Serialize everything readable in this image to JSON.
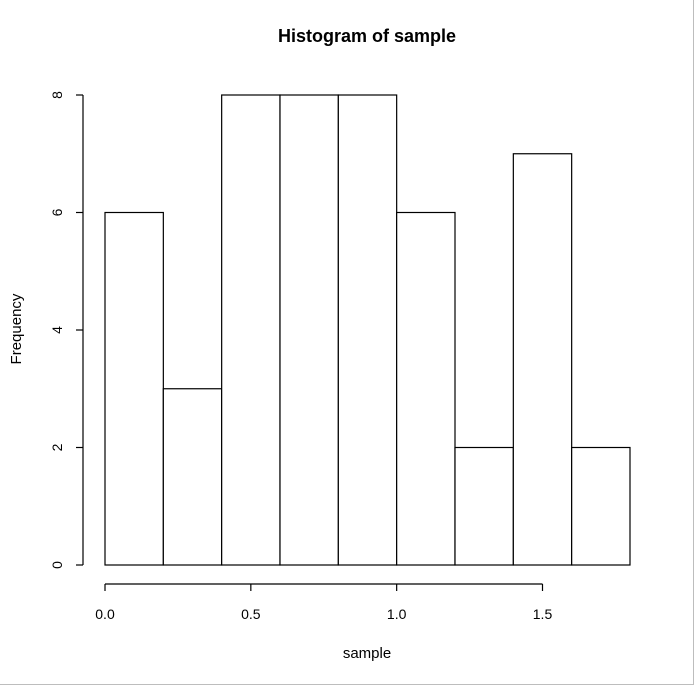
{
  "chart_data": {
    "type": "bar",
    "title": "Histogram of sample",
    "xlabel": "sample",
    "ylabel": "Frequency",
    "bin_edges": [
      0.0,
      0.2,
      0.4,
      0.6,
      0.8,
      1.0,
      1.2,
      1.4,
      1.6,
      1.8
    ],
    "values": [
      6,
      3,
      8,
      8,
      8,
      6,
      2,
      7,
      2
    ],
    "xlim": [
      0.0,
      1.8
    ],
    "ylim": [
      0,
      8
    ],
    "x_ticks": [
      0.0,
      0.5,
      1.0,
      1.5
    ],
    "x_tick_labels": [
      "0.0",
      "0.5",
      "1.0",
      "1.5"
    ],
    "y_ticks": [
      0,
      2,
      4,
      6,
      8
    ],
    "y_tick_labels": [
      "0",
      "2",
      "4",
      "6",
      "8"
    ],
    "grid": false,
    "legend": "none"
  }
}
